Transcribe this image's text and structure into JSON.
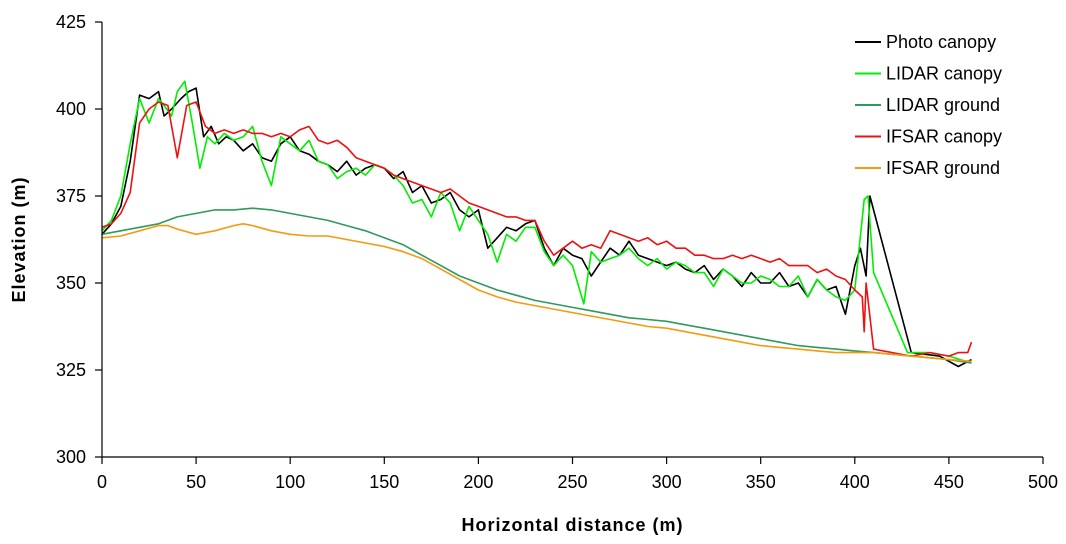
{
  "chart_data": {
    "type": "line",
    "xlabel": "Horizontal distance (m)",
    "ylabel": "Elevation (m)",
    "xlim": [
      0,
      500
    ],
    "ylim": [
      300,
      425
    ],
    "xticks": [
      0,
      50,
      100,
      150,
      200,
      250,
      300,
      350,
      400,
      450,
      500
    ],
    "yticks": [
      300,
      325,
      350,
      375,
      400,
      425
    ],
    "grid": false,
    "legend_position": "top-right",
    "series": [
      {
        "name": "Photo canopy",
        "color": "#000000",
        "x": [
          0,
          5,
          10,
          15,
          20,
          25,
          30,
          33,
          37,
          42,
          46,
          50,
          54,
          58,
          62,
          66,
          70,
          75,
          80,
          85,
          90,
          95,
          100,
          105,
          110,
          115,
          120,
          125,
          130,
          135,
          140,
          145,
          150,
          155,
          160,
          165,
          170,
          175,
          180,
          185,
          190,
          195,
          200,
          205,
          210,
          215,
          220,
          225,
          230,
          235,
          240,
          245,
          250,
          255,
          260,
          265,
          270,
          275,
          280,
          285,
          290,
          295,
          300,
          305,
          310,
          315,
          320,
          325,
          330,
          335,
          340,
          345,
          350,
          355,
          360,
          365,
          370,
          375,
          380,
          385,
          390,
          395,
          400,
          403,
          406,
          408,
          430,
          445,
          455,
          462
        ],
        "y": [
          364,
          367,
          372,
          385,
          404,
          403,
          405,
          398,
          400,
          403,
          405,
          406,
          392,
          395,
          390,
          392,
          391,
          388,
          390,
          386,
          385,
          390,
          392,
          388,
          387,
          385,
          384,
          382,
          385,
          381,
          383,
          384,
          383,
          380,
          382,
          376,
          378,
          373,
          374,
          376,
          371,
          369,
          371,
          360,
          363,
          366,
          365,
          367,
          368,
          360,
          355,
          360,
          358,
          357,
          352,
          356,
          360,
          358,
          362,
          358,
          357,
          356,
          355,
          356,
          354,
          353,
          355,
          351,
          354,
          352,
          349,
          353,
          350,
          350,
          353,
          349,
          350,
          346,
          351,
          348,
          349,
          341,
          355,
          360,
          352,
          375,
          330,
          329,
          326,
          328
        ]
      },
      {
        "name": "LIDAR canopy",
        "color": "#00ee00",
        "x": [
          0,
          5,
          10,
          15,
          20,
          25,
          30,
          33,
          37,
          40,
          44,
          48,
          52,
          56,
          60,
          65,
          70,
          75,
          80,
          85,
          90,
          95,
          100,
          105,
          110,
          115,
          120,
          125,
          130,
          135,
          140,
          145,
          150,
          155,
          160,
          165,
          170,
          175,
          180,
          185,
          190,
          195,
          200,
          205,
          210,
          215,
          220,
          225,
          230,
          235,
          240,
          245,
          250,
          256,
          260,
          265,
          270,
          275,
          280,
          285,
          290,
          295,
          300,
          305,
          310,
          315,
          320,
          325,
          330,
          335,
          340,
          345,
          350,
          355,
          360,
          365,
          370,
          375,
          380,
          385,
          390,
          395,
          400,
          405,
          407,
          410,
          428,
          440,
          450,
          462
        ],
        "y": [
          365,
          368,
          375,
          390,
          403,
          396,
          403,
          401,
          398,
          405,
          408,
          396,
          383,
          392,
          390,
          393,
          391,
          392,
          395,
          385,
          378,
          392,
          390,
          388,
          391,
          385,
          384,
          380,
          382,
          383,
          381,
          384,
          383,
          381,
          378,
          373,
          374,
          369,
          376,
          373,
          365,
          372,
          368,
          364,
          356,
          364,
          362,
          366,
          366,
          359,
          355,
          358,
          355,
          344,
          359,
          356,
          357,
          358,
          360,
          357,
          355,
          357,
          354,
          356,
          355,
          353,
          353,
          349,
          354,
          352,
          350,
          350,
          352,
          351,
          349,
          349,
          352,
          346,
          351,
          348,
          346,
          345,
          348,
          374,
          375,
          353,
          330,
          330,
          329,
          327
        ]
      },
      {
        "name": "LIDAR ground",
        "color": "#2e9a5c",
        "x": [
          0,
          10,
          20,
          30,
          40,
          50,
          60,
          70,
          80,
          90,
          100,
          110,
          120,
          130,
          140,
          150,
          160,
          170,
          180,
          190,
          200,
          210,
          220,
          230,
          240,
          250,
          260,
          270,
          280,
          290,
          300,
          310,
          320,
          330,
          340,
          350,
          360,
          370,
          380,
          390,
          400,
          410,
          420,
          430,
          440,
          450,
          462
        ],
        "y": [
          364,
          365,
          366,
          367,
          369,
          370,
          371,
          371,
          371.5,
          371,
          370,
          369,
          368,
          366.5,
          365,
          363,
          361,
          358,
          355,
          352,
          350,
          348,
          346.5,
          345,
          344,
          343,
          342,
          341,
          340,
          339.5,
          339,
          338,
          337,
          336,
          335,
          334,
          333,
          332,
          331.5,
          331,
          330.5,
          330,
          329.5,
          329,
          328.5,
          328,
          327
        ]
      },
      {
        "name": "IFSAR canopy",
        "color": "#ee1111",
        "x": [
          0,
          5,
          10,
          15,
          20,
          25,
          30,
          35,
          40,
          45,
          50,
          55,
          60,
          65,
          70,
          75,
          80,
          85,
          90,
          95,
          100,
          105,
          110,
          115,
          120,
          125,
          130,
          135,
          140,
          145,
          150,
          155,
          160,
          165,
          170,
          175,
          180,
          185,
          190,
          195,
          200,
          205,
          210,
          215,
          220,
          225,
          230,
          235,
          240,
          245,
          250,
          255,
          260,
          265,
          270,
          275,
          280,
          285,
          290,
          295,
          300,
          305,
          310,
          315,
          320,
          325,
          330,
          335,
          340,
          345,
          350,
          355,
          360,
          365,
          370,
          375,
          380,
          385,
          390,
          395,
          400,
          404,
          405,
          406,
          410,
          420,
          430,
          440,
          450,
          455,
          460,
          462
        ],
        "y": [
          366,
          367,
          370,
          376,
          396,
          400,
          402,
          401,
          386,
          401,
          402,
          395,
          393,
          394,
          393,
          394,
          393,
          393,
          392,
          393,
          392,
          394,
          395,
          391,
          390,
          391,
          389,
          386,
          385,
          384,
          383,
          381,
          380,
          379,
          378,
          377,
          376,
          377,
          375,
          373,
          372,
          371,
          370,
          369,
          369,
          368,
          368,
          362,
          358,
          360,
          362,
          360,
          361,
          360,
          365,
          364,
          363,
          362,
          363,
          361,
          362,
          360,
          360,
          358,
          358,
          357,
          357,
          358,
          357,
          358,
          357,
          356,
          357,
          355,
          355,
          355,
          353,
          354,
          352,
          351,
          348,
          346,
          336,
          350,
          331,
          330,
          329,
          330,
          329,
          330,
          330,
          333
        ]
      },
      {
        "name": "IFSAR ground",
        "color": "#f29a10",
        "x": [
          0,
          10,
          20,
          30,
          35,
          40,
          50,
          60,
          70,
          75,
          80,
          90,
          100,
          110,
          120,
          130,
          140,
          150,
          160,
          170,
          180,
          190,
          200,
          210,
          220,
          230,
          240,
          250,
          260,
          270,
          280,
          290,
          300,
          310,
          320,
          330,
          340,
          350,
          360,
          370,
          380,
          390,
          400,
          410,
          420,
          430,
          440,
          450,
          462
        ],
        "y": [
          363,
          363.5,
          365,
          366.5,
          366.5,
          365.5,
          364,
          365,
          366.5,
          367,
          366.5,
          365,
          364,
          363.5,
          363.5,
          362.5,
          361.5,
          360.5,
          359,
          357,
          354,
          351,
          348,
          346,
          344.5,
          343.5,
          342.5,
          341.5,
          340.5,
          339.5,
          338.5,
          337.5,
          337,
          336,
          335,
          334,
          333,
          332,
          331.5,
          331,
          330.5,
          330,
          330,
          330,
          329.5,
          329,
          328.5,
          328,
          327.5
        ]
      }
    ]
  }
}
